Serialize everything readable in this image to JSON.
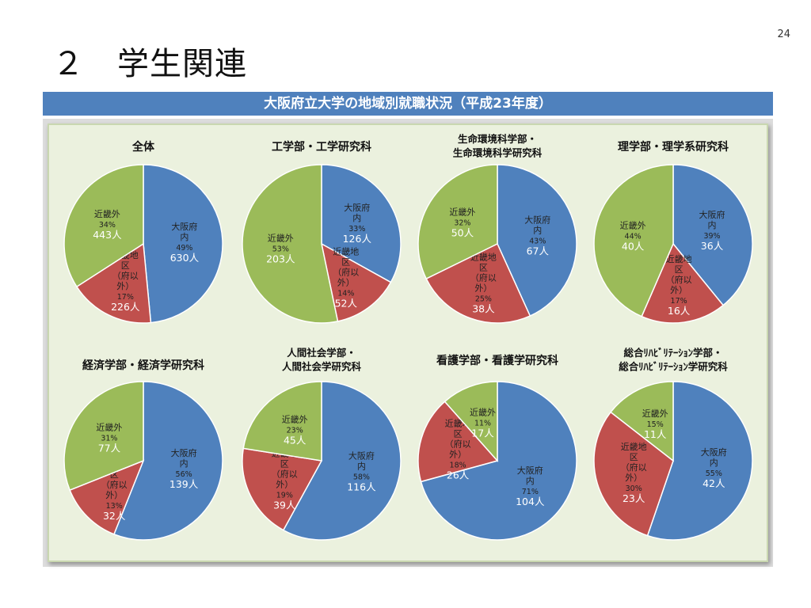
{
  "page_number": "24",
  "page_title": "２　学生関連",
  "banner_title": "大阪府立大学の地域別就職状況（平成23年度）",
  "colors": {
    "osaka": "#4f81bd",
    "kinki": "#c0504d",
    "outside": "#9bbb59"
  },
  "chart_data": [
    {
      "type": "pie",
      "title": [
        "全体"
      ],
      "slices": [
        {
          "label": [
            "大阪府",
            "内"
          ],
          "percent": "49%",
          "count": "630人",
          "value": 630,
          "color": "#4f81bd"
        },
        {
          "label": [
            "近畿地",
            "区",
            "（府以",
            "外）"
          ],
          "percent": "17%",
          "count": "226人",
          "value": 226,
          "color": "#c0504d"
        },
        {
          "label": [
            "近畿外"
          ],
          "percent": "34%",
          "count": "443人",
          "value": 443,
          "color": "#9bbb59"
        }
      ]
    },
    {
      "type": "pie",
      "title": [
        "工学部・工学研究科"
      ],
      "slices": [
        {
          "label": [
            "大阪府",
            "内"
          ],
          "percent": "33%",
          "count": "126人",
          "value": 126,
          "color": "#4f81bd"
        },
        {
          "label": [
            "近畿地",
            "区",
            "（府以",
            "外）"
          ],
          "percent": "14%",
          "count": "52人",
          "value": 52,
          "color": "#c0504d"
        },
        {
          "label": [
            "近畿外"
          ],
          "percent": "53%",
          "count": "203人",
          "value": 203,
          "color": "#9bbb59"
        }
      ]
    },
    {
      "type": "pie",
      "title": [
        "生命環境科学部・",
        "生命環境科学研究科"
      ],
      "slices": [
        {
          "label": [
            "大阪府",
            "内"
          ],
          "percent": "43%",
          "count": "67人",
          "value": 67,
          "color": "#4f81bd"
        },
        {
          "label": [
            "近畿地",
            "区",
            "（府以",
            "外）"
          ],
          "percent": "25%",
          "count": "38人",
          "value": 38,
          "color": "#c0504d"
        },
        {
          "label": [
            "近畿外"
          ],
          "percent": "32%",
          "count": "50人",
          "value": 50,
          "color": "#9bbb59"
        }
      ]
    },
    {
      "type": "pie",
      "title": [
        "理学部・理学系研究科"
      ],
      "slices": [
        {
          "label": [
            "大阪府",
            "内"
          ],
          "percent": "39%",
          "count": "36人",
          "value": 36,
          "color": "#4f81bd"
        },
        {
          "label": [
            "近畿地",
            "区",
            "（府以",
            "外）"
          ],
          "percent": "17%",
          "count": "16人",
          "value": 16,
          "color": "#c0504d"
        },
        {
          "label": [
            "近畿外"
          ],
          "percent": "44%",
          "count": "40人",
          "value": 40,
          "color": "#9bbb59"
        }
      ]
    },
    {
      "type": "pie",
      "title": [
        "経済学部・経済学研究科"
      ],
      "slices": [
        {
          "label": [
            "大阪府",
            "内"
          ],
          "percent": "56%",
          "count": "139人",
          "value": 139,
          "color": "#4f81bd"
        },
        {
          "label": [
            "近畿地",
            "区",
            "（府以",
            "外）"
          ],
          "percent": "13%",
          "count": "32人",
          "value": 32,
          "color": "#c0504d"
        },
        {
          "label": [
            "近畿外"
          ],
          "percent": "31%",
          "count": "77人",
          "value": 77,
          "color": "#9bbb59"
        }
      ]
    },
    {
      "type": "pie",
      "title": [
        "人間社会学部・",
        "人間社会学研究科"
      ],
      "slices": [
        {
          "label": [
            "大阪府",
            "内"
          ],
          "percent": "58%",
          "count": "116人",
          "value": 116,
          "color": "#4f81bd"
        },
        {
          "label": [
            "近畿地",
            "区",
            "（府以",
            "外）"
          ],
          "percent": "19%",
          "count": "39人",
          "value": 39,
          "color": "#c0504d"
        },
        {
          "label": [
            "近畿外"
          ],
          "percent": "23%",
          "count": "45人",
          "value": 45,
          "color": "#9bbb59"
        }
      ]
    },
    {
      "type": "pie",
      "title": [
        "看護学部・看護学研究科"
      ],
      "slices": [
        {
          "label": [
            "大阪府",
            "内"
          ],
          "percent": "71%",
          "count": "104人",
          "value": 104,
          "color": "#4f81bd"
        },
        {
          "label": [
            "近畿地",
            "区",
            "（府以",
            "外）"
          ],
          "percent": "18%",
          "count": "26人",
          "value": 26,
          "color": "#c0504d"
        },
        {
          "label": [
            "近畿外"
          ],
          "percent": "11%",
          "count": "17人",
          "value": 17,
          "color": "#9bbb59"
        }
      ]
    },
    {
      "type": "pie",
      "title": [
        "総合ﾘﾊﾋﾞﾘﾃｰｼｮﾝ学部・",
        "総合ﾘﾊﾋﾞﾘﾃｰｼｮﾝ学研究科"
      ],
      "slices": [
        {
          "label": [
            "大阪府",
            "内"
          ],
          "percent": "55%",
          "count": "42人",
          "value": 42,
          "color": "#4f81bd"
        },
        {
          "label": [
            "近畿地",
            "区",
            "（府以",
            "外）"
          ],
          "percent": "30%",
          "count": "23人",
          "value": 23,
          "color": "#c0504d"
        },
        {
          "label": [
            "近畿外"
          ],
          "percent": "15%",
          "count": "11人",
          "value": 11,
          "color": "#9bbb59"
        }
      ]
    }
  ]
}
